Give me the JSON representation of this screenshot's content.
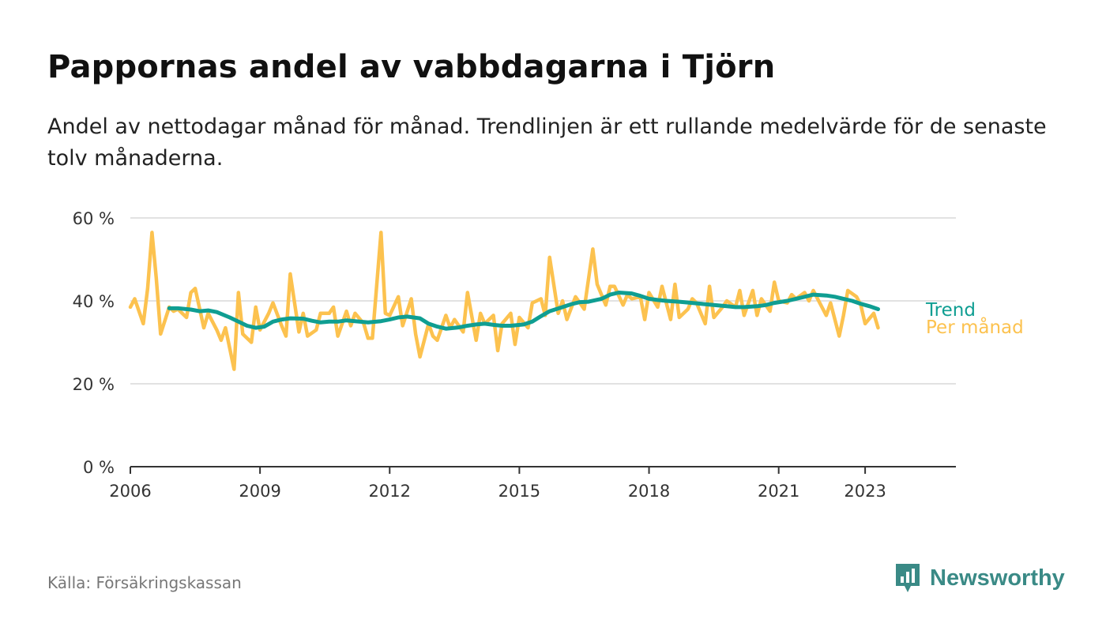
{
  "title": "Pappornas andel av vabbdagarna i Tjörn",
  "subtitle": "Andel av nettodagar månad för månad. Trendlinjen är ett rullande medelvärde för de senaste tolv månaderna.",
  "source": "Källa: Försäkringskassan",
  "brand": {
    "name": "Newsworthy",
    "icon": "newsworthy-logo-icon",
    "color": "#3a8a86"
  },
  "colors": {
    "monthly": "#fcc24f",
    "trend": "#0f9e92",
    "grid": "#d9d9d9",
    "axis": "#333333"
  },
  "chart_data": {
    "type": "line",
    "title": "Pappornas andel av vabbdagarna i Tjörn",
    "xlabel": "",
    "ylabel": "",
    "ylim": [
      0,
      60
    ],
    "xlim": [
      2006.0,
      2025.1
    ],
    "yticks": [
      0,
      20,
      40,
      60
    ],
    "ytick_labels": [
      "0 %",
      "20 %",
      "40 %",
      "60 %"
    ],
    "xticks": [
      2006,
      2009,
      2012,
      2015,
      2018,
      2021,
      2023
    ],
    "xtick_labels": [
      "2006",
      "2009",
      "2012",
      "2015",
      "2018",
      "2021",
      "2023"
    ],
    "grid": true,
    "legend": "right of line ends",
    "series": [
      {
        "name": "Trend",
        "color": "#0f9e92",
        "x": [
          2006.9,
          2007.1,
          2007.4,
          2007.6,
          2007.8,
          2008.0,
          2008.3,
          2008.5,
          2008.7,
          2008.9,
          2009.1,
          2009.3,
          2009.5,
          2009.7,
          2010.0,
          2010.2,
          2010.4,
          2010.6,
          2010.8,
          2011.0,
          2011.3,
          2011.5,
          2011.8,
          2012.0,
          2012.2,
          2012.4,
          2012.7,
          2012.9,
          2013.1,
          2013.3,
          2013.6,
          2013.8,
          2014.0,
          2014.2,
          2014.4,
          2014.6,
          2014.8,
          2015.1,
          2015.3,
          2015.5,
          2015.7,
          2016.0,
          2016.2,
          2016.4,
          2016.6,
          2016.9,
          2017.1,
          2017.3,
          2017.6,
          2017.8,
          2018.0,
          2018.2,
          2018.4,
          2018.7,
          2018.9,
          2019.1,
          2019.3,
          2019.6,
          2019.8,
          2020.0,
          2020.2,
          2020.5,
          2020.7,
          2020.9,
          2021.2,
          2021.4,
          2021.6,
          2021.8,
          2022.1,
          2022.3,
          2022.5,
          2022.7,
          2022.9,
          2023.1,
          2023.3
        ],
        "values": [
          38.2,
          38.2,
          37.9,
          37.5,
          37.7,
          37.3,
          36.0,
          35.0,
          34.0,
          33.5,
          33.8,
          35.0,
          35.5,
          35.8,
          35.7,
          35.2,
          34.8,
          35.0,
          35.0,
          35.3,
          35.0,
          34.8,
          35.1,
          35.5,
          36.0,
          36.2,
          35.8,
          34.5,
          33.8,
          33.3,
          33.6,
          34.0,
          34.3,
          34.5,
          34.2,
          34.0,
          34.0,
          34.3,
          35.0,
          36.3,
          37.5,
          38.5,
          39.2,
          39.7,
          39.8,
          40.5,
          41.5,
          42.0,
          41.8,
          41.2,
          40.5,
          40.2,
          40.0,
          39.8,
          39.6,
          39.4,
          39.2,
          38.9,
          38.7,
          38.5,
          38.5,
          38.7,
          39.0,
          39.5,
          40.0,
          40.5,
          41.0,
          41.5,
          41.3,
          41.0,
          40.5,
          40.0,
          39.3,
          38.7,
          38.0
        ]
      },
      {
        "name": "Per månad",
        "color": "#fcc24f",
        "x": [
          2006.0,
          2006.1,
          2006.3,
          2006.4,
          2006.5,
          2006.6,
          2006.7,
          2006.9,
          2007.0,
          2007.1,
          2007.3,
          2007.4,
          2007.5,
          2007.7,
          2007.8,
          2008.0,
          2008.1,
          2008.2,
          2008.4,
          2008.5,
          2008.6,
          2008.8,
          2008.9,
          2009.0,
          2009.2,
          2009.3,
          2009.5,
          2009.6,
          2009.7,
          2009.9,
          2010.0,
          2010.1,
          2010.3,
          2010.4,
          2010.6,
          2010.7,
          2010.8,
          2011.0,
          2011.1,
          2011.2,
          2011.4,
          2011.5,
          2011.6,
          2011.8,
          2011.9,
          2012.0,
          2012.2,
          2012.3,
          2012.5,
          2012.6,
          2012.7,
          2012.9,
          2013.0,
          2013.1,
          2013.3,
          2013.4,
          2013.5,
          2013.7,
          2013.8,
          2014.0,
          2014.1,
          2014.2,
          2014.4,
          2014.5,
          2014.6,
          2014.8,
          2014.9,
          2015.0,
          2015.2,
          2015.3,
          2015.5,
          2015.6,
          2015.7,
          2015.9,
          2016.0,
          2016.1,
          2016.3,
          2016.4,
          2016.5,
          2016.7,
          2016.8,
          2017.0,
          2017.1,
          2017.2,
          2017.4,
          2017.5,
          2017.6,
          2017.8,
          2017.9,
          2018.0,
          2018.2,
          2018.3,
          2018.5,
          2018.6,
          2018.7,
          2018.9,
          2019.0,
          2019.1,
          2019.3,
          2019.4,
          2019.5,
          2019.7,
          2019.8,
          2020.0,
          2020.1,
          2020.2,
          2020.4,
          2020.5,
          2020.6,
          2020.8,
          2020.9,
          2021.0,
          2021.2,
          2021.3,
          2021.4,
          2021.6,
          2021.7,
          2021.8,
          2022.0,
          2022.1,
          2022.2,
          2022.4,
          2022.5,
          2022.6,
          2022.8,
          2022.9,
          2023.0,
          2023.2,
          2023.3
        ],
        "values": [
          38.5,
          40.5,
          34.5,
          43.0,
          56.5,
          45.5,
          32.0,
          38.5,
          37.5,
          38.0,
          36.0,
          42.0,
          43.0,
          33.5,
          37.0,
          33.0,
          30.5,
          33.5,
          23.5,
          42.0,
          32.0,
          30.0,
          38.5,
          33.0,
          37.0,
          39.5,
          34.0,
          31.5,
          46.5,
          32.5,
          37.0,
          31.5,
          33.0,
          37.0,
          37.0,
          38.5,
          31.5,
          37.5,
          34.0,
          37.0,
          34.5,
          31.0,
          31.0,
          56.5,
          37.0,
          36.5,
          41.0,
          34.0,
          40.5,
          32.0,
          26.5,
          34.5,
          31.5,
          30.5,
          36.5,
          33.5,
          35.5,
          32.5,
          42.0,
          30.5,
          37.0,
          34.5,
          36.5,
          28.0,
          34.5,
          37.0,
          29.5,
          36.0,
          33.5,
          39.5,
          40.5,
          36.5,
          50.5,
          37.0,
          40.0,
          35.5,
          41.0,
          39.5,
          38.0,
          52.5,
          44.0,
          39.0,
          43.5,
          43.5,
          39.0,
          41.5,
          40.5,
          41.0,
          35.5,
          42.0,
          38.5,
          43.5,
          35.5,
          44.0,
          36.0,
          38.0,
          40.5,
          39.5,
          34.5,
          43.5,
          36.0,
          38.5,
          40.0,
          38.5,
          42.5,
          36.5,
          42.5,
          36.5,
          40.5,
          37.5,
          44.5,
          40.0,
          39.5,
          41.5,
          40.5,
          42.0,
          40.0,
          42.5,
          38.5,
          36.5,
          39.5,
          31.5,
          36.5,
          42.5,
          41.0,
          39.0,
          34.5,
          37.0,
          33.5
        ]
      }
    ]
  }
}
